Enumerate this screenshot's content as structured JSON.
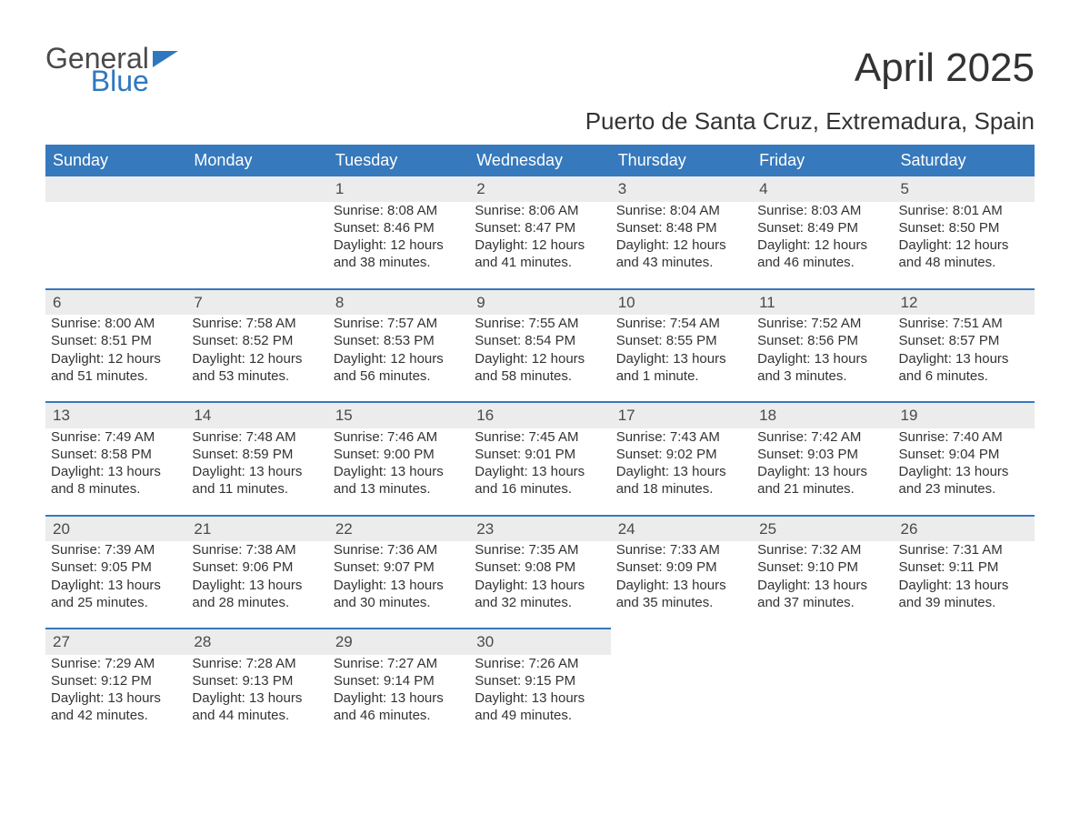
{
  "logo": {
    "line1": "General",
    "line2": "Blue"
  },
  "title": "April 2025",
  "location": "Puerto de Santa Cruz, Extremadura, Spain",
  "colors": {
    "header_bg": "#3679bd",
    "header_text": "#ffffff",
    "daynum_bg": "#ececec",
    "row_border": "#3679bd",
    "body_text": "#333333",
    "logo_gray": "#4a4a4a",
    "logo_blue": "#2f78bf",
    "page_bg": "#ffffff"
  },
  "typography": {
    "title_fontsize": 44,
    "subtitle_fontsize": 26,
    "header_fontsize": 18,
    "daynum_fontsize": 17,
    "body_fontsize": 15,
    "font_family": "Arial"
  },
  "columns": [
    "Sunday",
    "Monday",
    "Tuesday",
    "Wednesday",
    "Thursday",
    "Friday",
    "Saturday"
  ],
  "weeks": [
    [
      null,
      null,
      {
        "n": "1",
        "sr": "8:08 AM",
        "ss": "8:46 PM",
        "dl": "12 hours and 38 minutes."
      },
      {
        "n": "2",
        "sr": "8:06 AM",
        "ss": "8:47 PM",
        "dl": "12 hours and 41 minutes."
      },
      {
        "n": "3",
        "sr": "8:04 AM",
        "ss": "8:48 PM",
        "dl": "12 hours and 43 minutes."
      },
      {
        "n": "4",
        "sr": "8:03 AM",
        "ss": "8:49 PM",
        "dl": "12 hours and 46 minutes."
      },
      {
        "n": "5",
        "sr": "8:01 AM",
        "ss": "8:50 PM",
        "dl": "12 hours and 48 minutes."
      }
    ],
    [
      {
        "n": "6",
        "sr": "8:00 AM",
        "ss": "8:51 PM",
        "dl": "12 hours and 51 minutes."
      },
      {
        "n": "7",
        "sr": "7:58 AM",
        "ss": "8:52 PM",
        "dl": "12 hours and 53 minutes."
      },
      {
        "n": "8",
        "sr": "7:57 AM",
        "ss": "8:53 PM",
        "dl": "12 hours and 56 minutes."
      },
      {
        "n": "9",
        "sr": "7:55 AM",
        "ss": "8:54 PM",
        "dl": "12 hours and 58 minutes."
      },
      {
        "n": "10",
        "sr": "7:54 AM",
        "ss": "8:55 PM",
        "dl": "13 hours and 1 minute."
      },
      {
        "n": "11",
        "sr": "7:52 AM",
        "ss": "8:56 PM",
        "dl": "13 hours and 3 minutes."
      },
      {
        "n": "12",
        "sr": "7:51 AM",
        "ss": "8:57 PM",
        "dl": "13 hours and 6 minutes."
      }
    ],
    [
      {
        "n": "13",
        "sr": "7:49 AM",
        "ss": "8:58 PM",
        "dl": "13 hours and 8 minutes."
      },
      {
        "n": "14",
        "sr": "7:48 AM",
        "ss": "8:59 PM",
        "dl": "13 hours and 11 minutes."
      },
      {
        "n": "15",
        "sr": "7:46 AM",
        "ss": "9:00 PM",
        "dl": "13 hours and 13 minutes."
      },
      {
        "n": "16",
        "sr": "7:45 AM",
        "ss": "9:01 PM",
        "dl": "13 hours and 16 minutes."
      },
      {
        "n": "17",
        "sr": "7:43 AM",
        "ss": "9:02 PM",
        "dl": "13 hours and 18 minutes."
      },
      {
        "n": "18",
        "sr": "7:42 AM",
        "ss": "9:03 PM",
        "dl": "13 hours and 21 minutes."
      },
      {
        "n": "19",
        "sr": "7:40 AM",
        "ss": "9:04 PM",
        "dl": "13 hours and 23 minutes."
      }
    ],
    [
      {
        "n": "20",
        "sr": "7:39 AM",
        "ss": "9:05 PM",
        "dl": "13 hours and 25 minutes."
      },
      {
        "n": "21",
        "sr": "7:38 AM",
        "ss": "9:06 PM",
        "dl": "13 hours and 28 minutes."
      },
      {
        "n": "22",
        "sr": "7:36 AM",
        "ss": "9:07 PM",
        "dl": "13 hours and 30 minutes."
      },
      {
        "n": "23",
        "sr": "7:35 AM",
        "ss": "9:08 PM",
        "dl": "13 hours and 32 minutes."
      },
      {
        "n": "24",
        "sr": "7:33 AM",
        "ss": "9:09 PM",
        "dl": "13 hours and 35 minutes."
      },
      {
        "n": "25",
        "sr": "7:32 AM",
        "ss": "9:10 PM",
        "dl": "13 hours and 37 minutes."
      },
      {
        "n": "26",
        "sr": "7:31 AM",
        "ss": "9:11 PM",
        "dl": "13 hours and 39 minutes."
      }
    ],
    [
      {
        "n": "27",
        "sr": "7:29 AM",
        "ss": "9:12 PM",
        "dl": "13 hours and 42 minutes."
      },
      {
        "n": "28",
        "sr": "7:28 AM",
        "ss": "9:13 PM",
        "dl": "13 hours and 44 minutes."
      },
      {
        "n": "29",
        "sr": "7:27 AM",
        "ss": "9:14 PM",
        "dl": "13 hours and 46 minutes."
      },
      {
        "n": "30",
        "sr": "7:26 AM",
        "ss": "9:15 PM",
        "dl": "13 hours and 49 minutes."
      },
      null,
      null,
      null
    ]
  ],
  "labels": {
    "sunrise": "Sunrise: ",
    "sunset": "Sunset: ",
    "daylight": "Daylight: "
  }
}
